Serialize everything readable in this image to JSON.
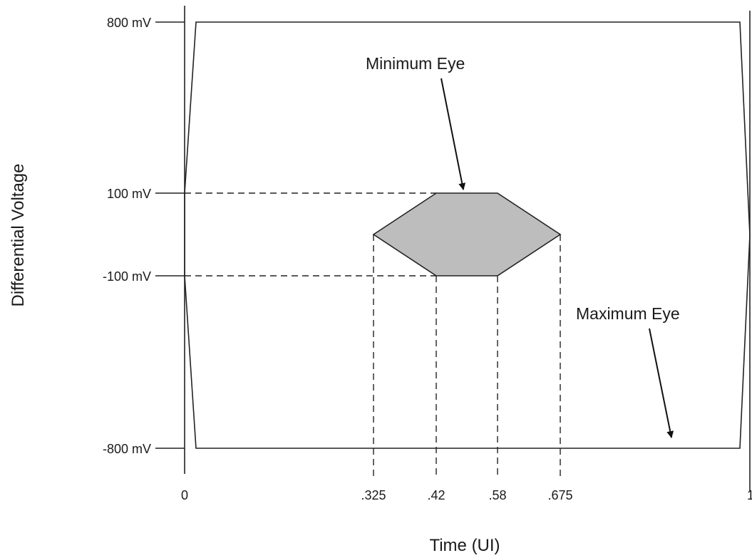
{
  "y_label": "Differential Voltage",
  "x_label": "Time (UI)",
  "y_ticks": [
    {
      "label": "800 mV",
      "value_mV": 800
    },
    {
      "label": "100 mV",
      "value_mV": 100
    },
    {
      "label": "-100 mV",
      "value_mV": -100
    },
    {
      "label": "-800 mV",
      "value_mV": -800
    }
  ],
  "x_ticks": [
    {
      "label": "0",
      "value_ui": 0
    },
    {
      "label": ".325",
      "value_ui": 0.325
    },
    {
      "label": ".42",
      "value_ui": 0.42
    },
    {
      "label": ".58",
      "value_ui": 0.58
    },
    {
      "label": ".675",
      "value_ui": 0.675
    },
    {
      "label": "1",
      "value_ui": 1
    }
  ],
  "annotations": {
    "minimum_eye": "Minimum Eye",
    "maximum_eye": "Maximum Eye"
  },
  "colors": {
    "minimum_eye_fill": "#bdbdbd",
    "line": "#222222"
  }
}
